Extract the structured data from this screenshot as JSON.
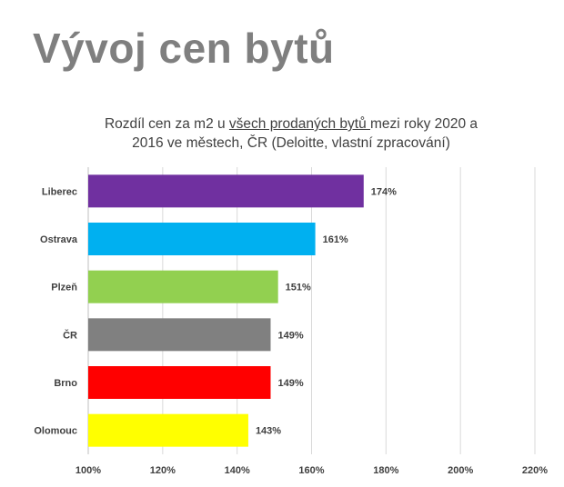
{
  "slide": {
    "title": "Vývoj cen bytů"
  },
  "chart_data": {
    "type": "bar",
    "orientation": "horizontal",
    "title_parts": [
      "Rozdíl cen za m2 u ",
      "všech prodaných bytů ",
      "mezi roky 2020 a",
      "2016 ve městech, ČR (Deloitte, vlastní zpracování)"
    ],
    "categories": [
      "Liberec",
      "Ostrava",
      "Plzeň",
      "ČR",
      "Brno",
      "Olomouc"
    ],
    "values": [
      174,
      161,
      151,
      149,
      149,
      143
    ],
    "data_labels": [
      "174%",
      "161%",
      "151%",
      "149%",
      "149%",
      "143%"
    ],
    "bar_colors": [
      "#7030a0",
      "#00b0f0",
      "#92d050",
      "#808080",
      "#ff0000",
      "#ffff00"
    ],
    "xlim": [
      100,
      220
    ],
    "x_ticks": [
      100,
      120,
      140,
      160,
      180,
      200,
      220
    ],
    "x_tick_labels": [
      "100%",
      "120%",
      "140%",
      "160%",
      "180%",
      "200%",
      "220%"
    ],
    "grid": true,
    "legend": "none"
  }
}
